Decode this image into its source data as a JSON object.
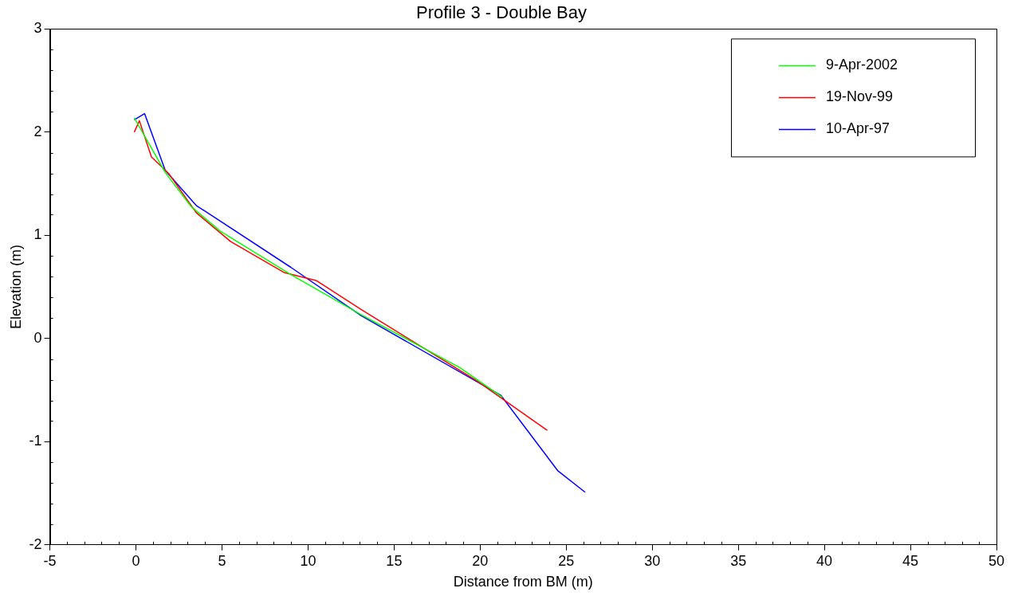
{
  "chart_data": {
    "type": "line",
    "title": "Profile 3 - Double Bay",
    "xlabel": "Distance from BM (m)",
    "ylabel": "Elevation (m)",
    "xlim": [
      -5,
      50
    ],
    "xticks": [
      -5,
      0,
      5,
      10,
      15,
      20,
      25,
      30,
      35,
      40,
      45,
      50
    ],
    "ylim": [
      -2,
      3
    ],
    "yticks": [
      -2,
      -1,
      0,
      1,
      2,
      3
    ],
    "grid": false,
    "legend": "top right",
    "marker": "none",
    "line_style": "solid",
    "series": [
      {
        "name": "9-Apr-2002",
        "color": "#00ff00",
        "x": [
          -0.1,
          1.7,
          3.2,
          4.9,
          9,
          13.1,
          18.8,
          21.3
        ],
        "values": [
          2.14,
          1.61,
          1.28,
          1.04,
          0.62,
          0.23,
          -0.28,
          -0.57
        ]
      },
      {
        "name": "19-Nov-99",
        "color": "#ff0000",
        "x": [
          -0.1,
          0.2,
          0.9,
          1.9,
          3.5,
          5.5,
          8.6,
          10.5,
          13.1,
          19.8,
          23.9
        ],
        "values": [
          2.0,
          2.11,
          1.76,
          1.6,
          1.22,
          0.94,
          0.64,
          0.56,
          0.28,
          -0.41,
          -0.89
        ]
      },
      {
        "name": "10-Apr-97",
        "color": "#0000ff",
        "x": [
          -0.1,
          0.5,
          1.7,
          3.5,
          9,
          13.1,
          21.2,
          24.5,
          26.1
        ],
        "values": [
          2.12,
          2.18,
          1.63,
          1.29,
          0.69,
          0.22,
          -0.55,
          -1.28,
          -1.49
        ]
      }
    ]
  }
}
